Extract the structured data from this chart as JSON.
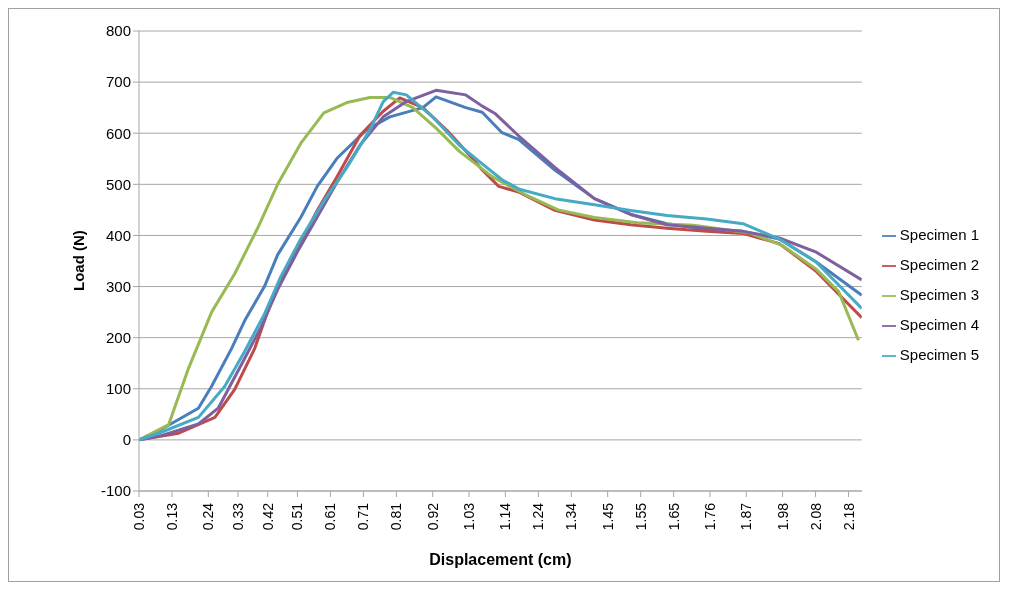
{
  "chart_data": {
    "type": "line",
    "xlabel": "Displacement (cm)",
    "ylabel": "Load (N)",
    "xlim": [
      0.03,
      2.22
    ],
    "xticks": [
      0.03,
      0.13,
      0.24,
      0.33,
      0.42,
      0.51,
      0.61,
      0.71,
      0.81,
      0.92,
      1.03,
      1.14,
      1.24,
      1.34,
      1.45,
      1.55,
      1.65,
      1.76,
      1.87,
      1.98,
      2.08,
      2.18
    ],
    "ylim": [
      -100,
      800
    ],
    "yticks": [
      -100,
      0,
      100,
      200,
      300,
      400,
      500,
      600,
      700,
      800
    ],
    "grid": "y",
    "legend": "right",
    "marker": "none",
    "line_style": "solid",
    "series": [
      {
        "name": "Specimen 1",
        "color": "#4a7ebb",
        "x": [
          0.03,
          0.09,
          0.21,
          0.25,
          0.31,
          0.35,
          0.41,
          0.45,
          0.52,
          0.57,
          0.63,
          0.72,
          0.79,
          0.89,
          0.93,
          1.02,
          1.07,
          1.13,
          1.18,
          1.29,
          1.41,
          1.52,
          1.63,
          1.75,
          1.86,
          1.97,
          2.08,
          2.22
        ],
        "values": [
          0,
          18,
          62,
          105,
          178,
          233,
          300,
          362,
          435,
          496,
          551,
          607,
          632,
          650,
          671,
          650,
          641,
          601,
          588,
          528,
          472,
          441,
          423,
          412,
          408,
          393,
          349,
          283
        ]
      },
      {
        "name": "Specimen 2",
        "color": "#be4b48",
        "x": [
          0.03,
          0.15,
          0.26,
          0.32,
          0.38,
          0.43,
          0.5,
          0.57,
          0.63,
          0.7,
          0.77,
          0.82,
          0.89,
          0.97,
          1.04,
          1.07,
          1.12,
          1.18,
          1.29,
          1.41,
          1.52,
          1.63,
          1.75,
          1.86,
          1.97,
          2.08,
          2.22
        ],
        "values": [
          0,
          13,
          44,
          99,
          178,
          270,
          362,
          449,
          515,
          596,
          643,
          669,
          650,
          601,
          551,
          528,
          496,
          485,
          449,
          430,
          421,
          414,
          408,
          404,
          384,
          331,
          239
        ]
      },
      {
        "name": "Specimen 3",
        "color": "#98b954",
        "x": [
          0.03,
          0.12,
          0.18,
          0.25,
          0.32,
          0.39,
          0.45,
          0.52,
          0.59,
          0.66,
          0.73,
          0.79,
          0.86,
          0.93,
          1.0,
          1.1,
          1.2,
          1.3,
          1.41,
          1.54,
          1.71,
          1.88,
          1.98,
          2.08,
          2.15,
          2.21
        ],
        "values": [
          0,
          30,
          140,
          250,
          325,
          415,
          500,
          580,
          640,
          660,
          670,
          670,
          650,
          610,
          565,
          515,
          480,
          450,
          435,
          425,
          420,
          405,
          380,
          335,
          290,
          195
        ]
      },
      {
        "name": "Specimen 4",
        "color": "#7d60a0",
        "x": [
          0.03,
          0.09,
          0.21,
          0.27,
          0.34,
          0.4,
          0.45,
          0.51,
          0.57,
          0.63,
          0.7,
          0.77,
          0.84,
          0.93,
          1.02,
          1.07,
          1.11,
          1.18,
          1.29,
          1.41,
          1.52,
          1.63,
          1.75,
          1.86,
          1.97,
          2.08,
          2.22
        ],
        "values": [
          0,
          7,
          31,
          62,
          147,
          221,
          294,
          368,
          436,
          504,
          577,
          632,
          662,
          684,
          675,
          653,
          638,
          595,
          533,
          472,
          441,
          421,
          414,
          408,
          395,
          368,
          313
        ]
      },
      {
        "name": "Specimen 5",
        "color": "#46aac5",
        "x": [
          0.03,
          0.09,
          0.21,
          0.29,
          0.35,
          0.41,
          0.46,
          0.52,
          0.59,
          0.66,
          0.73,
          0.77,
          0.8,
          0.84,
          0.92,
          1.0,
          1.07,
          1.13,
          1.18,
          1.29,
          1.41,
          1.52,
          1.63,
          1.75,
          1.86,
          1.97,
          2.08,
          2.22
        ],
        "values": [
          0,
          13,
          44,
          105,
          173,
          246,
          320,
          393,
          467,
          533,
          607,
          662,
          680,
          675,
          632,
          577,
          540,
          509,
          491,
          472,
          460,
          449,
          439,
          432,
          423,
          393,
          349,
          257
        ]
      }
    ]
  }
}
